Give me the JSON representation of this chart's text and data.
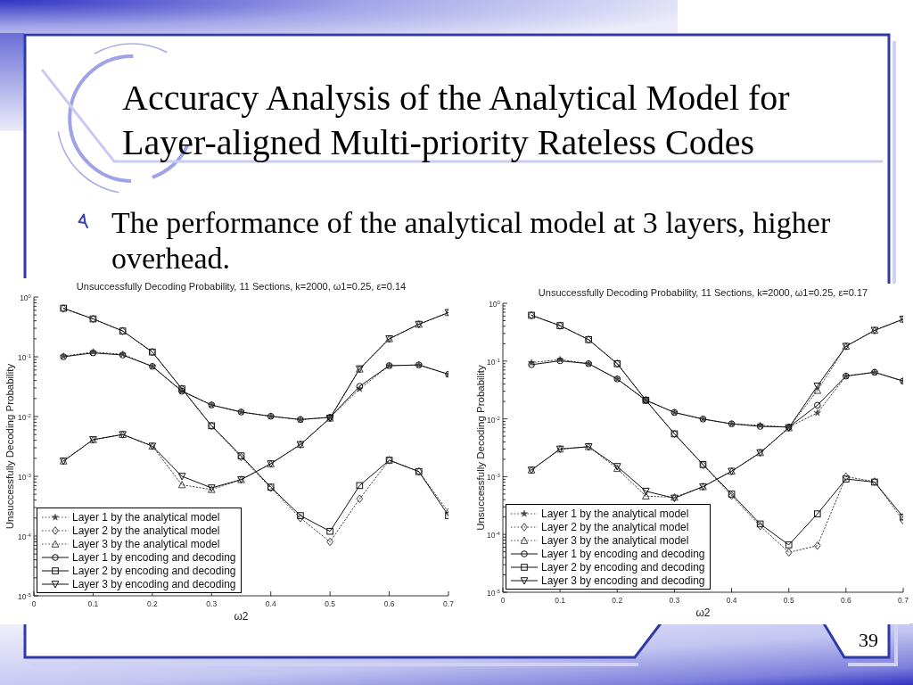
{
  "chart_data": [
    {
      "type": "other",
      "title": "Accuracy Analysis of the Analytical Model for Layer-aligned Multi-priority Rateless Codes",
      "annotations": [
        "The performance of the analytical model at 3 layers, higher overhead.",
        "39"
      ]
    },
    {
      "type": "line",
      "title": "Unsuccessfully Decoding Probability, 11 Sections, k=2000, ω1=0.25, ε=0.14",
      "xlabel": "ω2",
      "ylabel": "Unsuccessfully Decoding Probability",
      "log": "y",
      "legend": "bottom left",
      "x": [
        0.05,
        0.1,
        0.15,
        0.2,
        0.25,
        0.3,
        0.35,
        0.4,
        0.45,
        0.5,
        0.55,
        0.6,
        0.65,
        0.7
      ],
      "xlim": [
        0,
        0.7
      ],
      "xticks": [
        0,
        0.1,
        0.2,
        0.3,
        0.4,
        0.5,
        0.6,
        0.7
      ],
      "ylim": [
        1e-05,
        1
      ],
      "yticks": [
        {
          "value": 1e-05,
          "label": "10$^{-5}$"
        },
        {
          "value": 2e-05,
          "label": null
        },
        {
          "value": 3e-05,
          "label": null
        },
        {
          "value": 4e-05,
          "label": null
        },
        {
          "value": 5e-05,
          "label": null
        },
        {
          "value": 6e-05,
          "label": null
        },
        {
          "value": 7e-05,
          "label": null
        },
        {
          "value": 8e-05,
          "label": null
        },
        {
          "value": 9e-05,
          "label": null
        },
        {
          "value": 0.0001,
          "label": "10$^{-4}$"
        },
        {
          "value": 0.0002,
          "label": null
        },
        {
          "value": 0.0003,
          "label": null
        },
        {
          "value": 0.0004,
          "label": null
        },
        {
          "value": 0.0005,
          "label": null
        },
        {
          "value": 0.0006,
          "label": null
        },
        {
          "value": 0.0007,
          "label": null
        },
        {
          "value": 0.0008,
          "label": null
        },
        {
          "value": 0.0009,
          "label": null
        },
        {
          "value": 0.001,
          "label": "10$^{-3}$"
        },
        {
          "value": 0.002,
          "label": null
        },
        {
          "value": 0.003,
          "label": null
        },
        {
          "value": 0.004,
          "label": null
        },
        {
          "value": 0.005,
          "label": null
        },
        {
          "value": 0.006,
          "label": null
        },
        {
          "value": 0.007,
          "label": null
        },
        {
          "value": 0.008,
          "label": null
        },
        {
          "value": 0.009,
          "label": null
        },
        {
          "value": 0.01,
          "label": "10$^{-2}$"
        },
        {
          "value": 0.02,
          "label": null
        },
        {
          "value": 0.03,
          "label": null
        },
        {
          "value": 0.04,
          "label": null
        },
        {
          "value": 0.05,
          "label": null
        },
        {
          "value": 0.06,
          "label": null
        },
        {
          "value": 0.07,
          "label": null
        },
        {
          "value": 0.08,
          "label": null
        },
        {
          "value": 0.09,
          "label": null
        },
        {
          "value": 0.1,
          "label": "10$^{-1}$"
        },
        {
          "value": 0.2,
          "label": null
        },
        {
          "value": 0.3,
          "label": null
        },
        {
          "value": 0.4,
          "label": null
        },
        {
          "value": 0.5,
          "label": null
        },
        {
          "value": 0.6,
          "label": null
        },
        {
          "value": 0.7,
          "label": null
        },
        {
          "value": 0.8,
          "label": null
        },
        {
          "value": 0.9,
          "label": null
        },
        {
          "value": 1,
          "label": "10$^{0}$"
        }
      ],
      "series": [
        {
          "name": "Layer 1 by the analytical model",
          "color": "#444444",
          "marker": "star",
          "line_style": "dotted",
          "values": [
            0.102,
            0.12,
            0.11,
            0.069,
            0.027,
            0.0156,
            0.0119,
            0.0101,
            0.0089,
            0.0097,
            0.029,
            0.071,
            0.073,
            0.051
          ]
        },
        {
          "name": "Layer 2 by the analytical model",
          "color": "#444444",
          "marker": "diamond",
          "line_style": "dotted",
          "values": [
            0.64,
            0.43,
            0.27,
            0.12,
            0.029,
            0.007,
            0.0021,
            0.00064,
            0.0002,
            8e-05,
            0.00042,
            0.00186,
            0.0012,
            0.00025
          ]
        },
        {
          "name": "Layer 3 by the analytical model",
          "color": "#444444",
          "marker": "triangle",
          "line_style": "dotted",
          "values": [
            0.0018,
            0.0041,
            0.005,
            0.0032,
            0.00072,
            0.0006,
            0.00088,
            0.00162,
            0.0034,
            0.0094,
            0.062,
            0.2,
            0.35,
            0.55
          ]
        },
        {
          "name": "Layer 1 by encoding and decoding",
          "color": "#111111",
          "marker": "circle",
          "line_style": "solid",
          "values": [
            0.1,
            0.116,
            0.107,
            0.069,
            0.0265,
            0.0156,
            0.0119,
            0.0101,
            0.0089,
            0.0097,
            0.032,
            0.071,
            0.073,
            0.051
          ]
        },
        {
          "name": "Layer 2 by encoding and decoding",
          "color": "#111111",
          "marker": "square",
          "line_style": "solid",
          "values": [
            0.65,
            0.43,
            0.27,
            0.12,
            0.029,
            0.007,
            0.0022,
            0.00066,
            0.00022,
            0.00012,
            0.0007,
            0.00186,
            0.0012,
            0.00022
          ]
        },
        {
          "name": "Layer 3 by encoding and decoding",
          "color": "#111111",
          "marker": "triangle-down",
          "line_style": "solid",
          "values": [
            0.0018,
            0.0041,
            0.005,
            0.0032,
            0.001,
            0.00064,
            0.00088,
            0.00162,
            0.0034,
            0.0094,
            0.063,
            0.2,
            0.35,
            0.55
          ]
        }
      ]
    },
    {
      "type": "line",
      "title": "Unsuccessfully Decoding Probability, 11 Sections, k=2000, ω1=0.25, ε=0.17",
      "xlabel": "ω2",
      "ylabel": "Unsuccessfully Decoding Probability",
      "log": "y",
      "legend": "bottom left",
      "x": [
        0.05,
        0.1,
        0.15,
        0.2,
        0.25,
        0.3,
        0.35,
        0.4,
        0.45,
        0.5,
        0.55,
        0.6,
        0.65,
        0.7
      ],
      "xlim": [
        0,
        0.7
      ],
      "xticks": [
        0,
        0.1,
        0.2,
        0.3,
        0.4,
        0.5,
        0.6,
        0.7
      ],
      "ylim": [
        1e-05,
        1
      ],
      "yticks": [
        {
          "value": 1e-05,
          "label": "10$^{-5}$"
        },
        {
          "value": 2e-05,
          "label": null
        },
        {
          "value": 3e-05,
          "label": null
        },
        {
          "value": 4e-05,
          "label": null
        },
        {
          "value": 5e-05,
          "label": null
        },
        {
          "value": 6e-05,
          "label": null
        },
        {
          "value": 7e-05,
          "label": null
        },
        {
          "value": 8e-05,
          "label": null
        },
        {
          "value": 9e-05,
          "label": null
        },
        {
          "value": 0.0001,
          "label": "10$^{-4}$"
        },
        {
          "value": 0.0002,
          "label": null
        },
        {
          "value": 0.0003,
          "label": null
        },
        {
          "value": 0.0004,
          "label": null
        },
        {
          "value": 0.0005,
          "label": null
        },
        {
          "value": 0.0006,
          "label": null
        },
        {
          "value": 0.0007,
          "label": null
        },
        {
          "value": 0.0008,
          "label": null
        },
        {
          "value": 0.0009,
          "label": null
        },
        {
          "value": 0.001,
          "label": "10$^{-3}$"
        },
        {
          "value": 0.002,
          "label": null
        },
        {
          "value": 0.003,
          "label": null
        },
        {
          "value": 0.004,
          "label": null
        },
        {
          "value": 0.005,
          "label": null
        },
        {
          "value": 0.006,
          "label": null
        },
        {
          "value": 0.007,
          "label": null
        },
        {
          "value": 0.008,
          "label": null
        },
        {
          "value": 0.009,
          "label": null
        },
        {
          "value": 0.01,
          "label": "10$^{-2}$"
        },
        {
          "value": 0.02,
          "label": null
        },
        {
          "value": 0.03,
          "label": null
        },
        {
          "value": 0.04,
          "label": null
        },
        {
          "value": 0.05,
          "label": null
        },
        {
          "value": 0.06,
          "label": null
        },
        {
          "value": 0.07,
          "label": null
        },
        {
          "value": 0.08,
          "label": null
        },
        {
          "value": 0.09,
          "label": null
        },
        {
          "value": 0.1,
          "label": "10$^{-1}$"
        },
        {
          "value": 0.2,
          "label": null
        },
        {
          "value": 0.3,
          "label": null
        },
        {
          "value": 0.4,
          "label": null
        },
        {
          "value": 0.5,
          "label": null
        },
        {
          "value": 0.6,
          "label": null
        },
        {
          "value": 0.7,
          "label": null
        },
        {
          "value": 0.8,
          "label": null
        },
        {
          "value": 0.9,
          "label": null
        },
        {
          "value": 1,
          "label": "10$^{0}$"
        }
      ],
      "series": [
        {
          "name": "Layer 1 by the analytical model",
          "color": "#444444",
          "marker": "star",
          "line_style": "dotted",
          "values": [
            0.094,
            0.106,
            0.09,
            0.049,
            0.021,
            0.0129,
            0.0099,
            0.0082,
            0.0077,
            0.0072,
            0.0127,
            0.055,
            0.064,
            0.045
          ]
        },
        {
          "name": "Layer 2 by the analytical model",
          "color": "#444444",
          "marker": "diamond",
          "line_style": "dotted",
          "values": [
            0.62,
            0.41,
            0.235,
            0.09,
            0.021,
            0.0055,
            0.0016,
            0.00047,
            0.00014,
            4.9e-05,
            6.4e-05,
            0.001,
            0.00082,
            0.000175
          ]
        },
        {
          "name": "Layer 3 by the analytical model",
          "color": "#444444",
          "marker": "triangle",
          "line_style": "dotted",
          "values": [
            0.0013,
            0.003,
            0.0033,
            0.00138,
            0.00046,
            0.00044,
            0.00067,
            0.00124,
            0.0026,
            0.007,
            0.031,
            0.18,
            0.34,
            0.53
          ]
        },
        {
          "name": "Layer 1 by encoding and decoding",
          "color": "#111111",
          "marker": "circle",
          "line_style": "solid",
          "values": [
            0.0865,
            0.101,
            0.09,
            0.049,
            0.021,
            0.0129,
            0.0099,
            0.0082,
            0.0074,
            0.0072,
            0.0172,
            0.055,
            0.064,
            0.045
          ]
        },
        {
          "name": "Layer 2 by encoding and decoding",
          "color": "#111111",
          "marker": "square",
          "line_style": "solid",
          "values": [
            0.62,
            0.41,
            0.235,
            0.09,
            0.021,
            0.0055,
            0.00162,
            0.0005,
            0.000152,
            6.6e-05,
            0.000227,
            0.00091,
            0.000805,
            0.0002
          ]
        },
        {
          "name": "Layer 3 by encoding and decoding",
          "color": "#111111",
          "marker": "triangle-down",
          "line_style": "solid",
          "values": [
            0.0013,
            0.003,
            0.0033,
            0.0015,
            0.00056,
            0.000425,
            0.00067,
            0.00124,
            0.0026,
            0.007,
            0.037,
            0.18,
            0.34,
            0.53
          ]
        }
      ]
    }
  ]
}
